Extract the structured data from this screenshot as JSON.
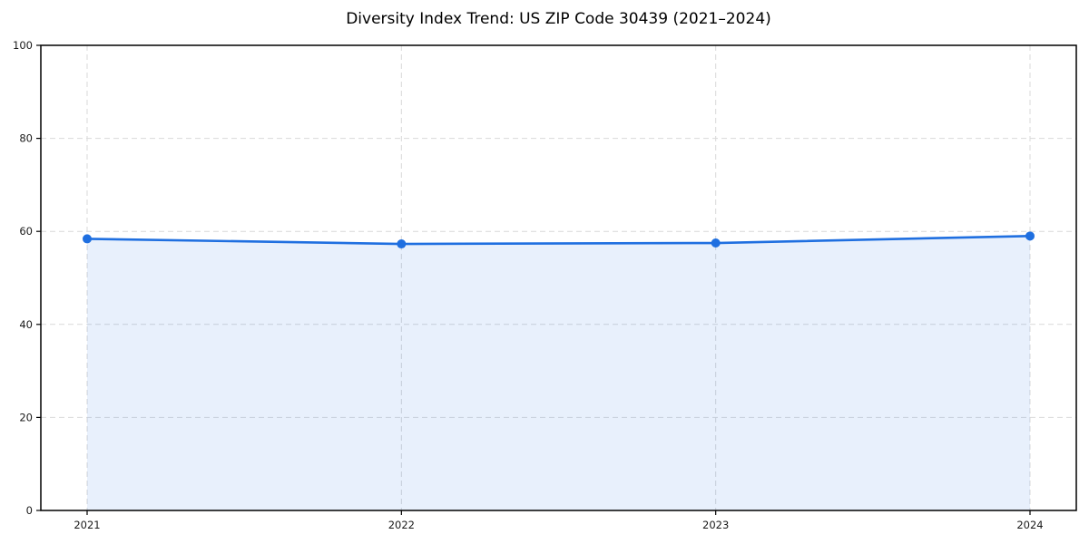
{
  "chart_data": {
    "type": "area",
    "title": "Diversity Index Trend: US ZIP Code 30439 (2021–2024)",
    "x": [
      "2021",
      "2022",
      "2023",
      "2024"
    ],
    "values": [
      58.4,
      57.3,
      57.5,
      59.0
    ],
    "series_name": "Diversity Index",
    "xlabel": "",
    "ylabel": "",
    "ylim": [
      0,
      100
    ],
    "yticks": [
      0,
      20,
      40,
      60,
      80,
      100
    ],
    "grid": true,
    "grid_style": "dashed",
    "legend": "none",
    "colors": {
      "line": "#1f6fe0",
      "marker": "#1f6fe0",
      "fill": "rgba(31,111,224,0.10)",
      "grid": "#d9d9d9",
      "spine": "#000000",
      "tick_label": "#1a1a1a",
      "title": "#000000",
      "background": "#ffffff"
    }
  }
}
